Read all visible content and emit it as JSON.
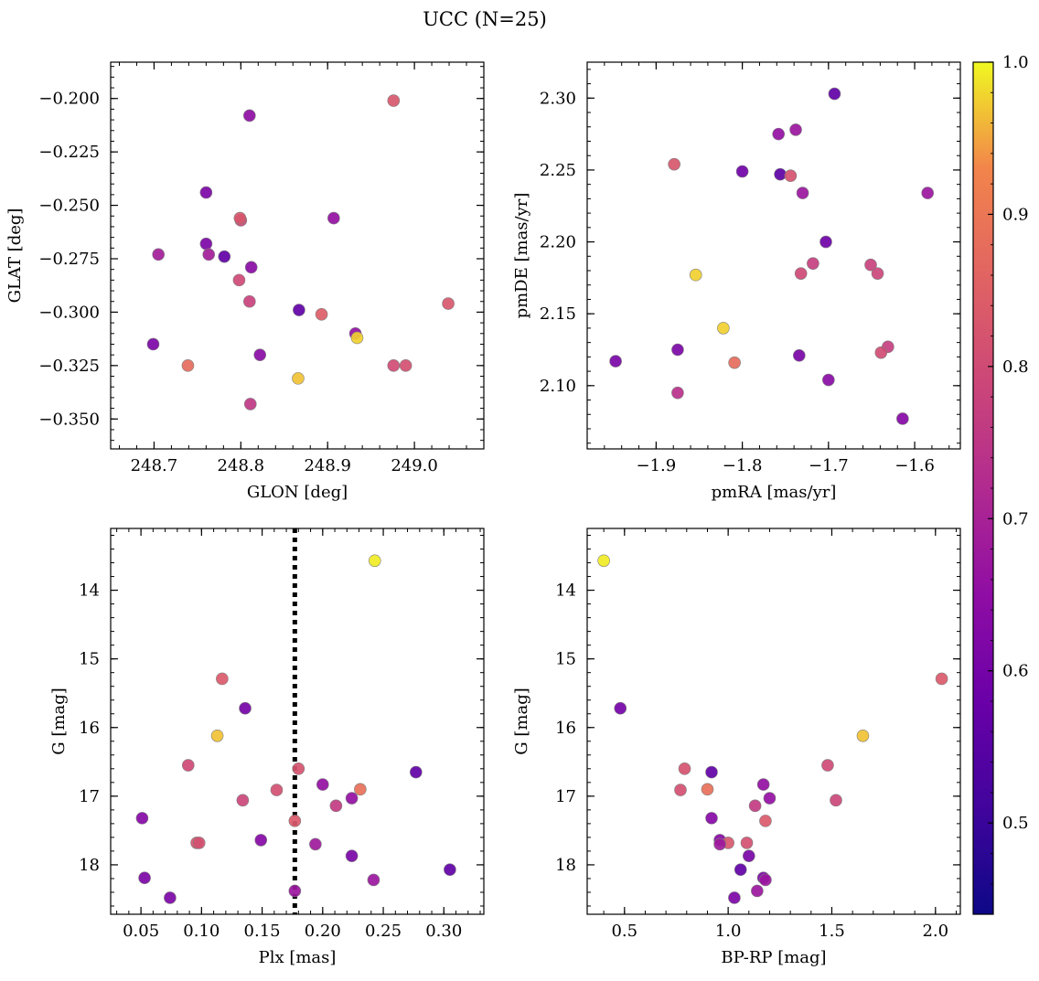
{
  "figure": {
    "title": "UCC (N=25)"
  },
  "colorbar": {
    "min": 0.44,
    "max": 1.0,
    "ticks": [
      "0.5",
      "0.6",
      "0.7",
      "0.8",
      "0.9",
      "1.0"
    ],
    "tick_values": [
      0.5,
      0.6,
      0.7,
      0.8,
      0.9,
      1.0
    ],
    "colormap": "plasma"
  },
  "chart_data": [
    {
      "type": "scatter",
      "id": "glon-glat",
      "xlabel": "GLON [deg]",
      "ylabel": "GLAT [deg]",
      "xlim": [
        248.65,
        249.08
      ],
      "ylim": [
        -0.364,
        -0.183
      ],
      "xticks": [
        248.7,
        248.8,
        248.9,
        249.0
      ],
      "xtick_labels": [
        "248.7",
        "248.8",
        "248.9",
        "249.0"
      ],
      "yticks": [
        -0.2,
        -0.225,
        -0.25,
        -0.275,
        -0.3,
        -0.325,
        -0.35
      ],
      "ytick_labels": [
        "−0.200",
        "−0.225",
        "−0.250",
        "−0.275",
        "−0.300",
        "−0.325",
        "−0.350"
      ],
      "points": [
        {
          "x": 248.976,
          "y": -0.201,
          "c": 0.79
        },
        {
          "x": 248.81,
          "y": -0.208,
          "c": 0.57
        },
        {
          "x": 248.76,
          "y": -0.244,
          "c": 0.53
        },
        {
          "x": 248.8,
          "y": -0.257,
          "c": 0.74
        },
        {
          "x": 248.799,
          "y": -0.256,
          "c": 0.79
        },
        {
          "x": 248.907,
          "y": -0.256,
          "c": 0.58
        },
        {
          "x": 248.76,
          "y": -0.268,
          "c": 0.53
        },
        {
          "x": 248.705,
          "y": -0.273,
          "c": 0.62
        },
        {
          "x": 248.763,
          "y": -0.273,
          "c": 0.62
        },
        {
          "x": 248.781,
          "y": -0.274,
          "c": 0.47
        },
        {
          "x": 248.812,
          "y": -0.279,
          "c": 0.56
        },
        {
          "x": 248.798,
          "y": -0.285,
          "c": 0.75
        },
        {
          "x": 248.81,
          "y": -0.295,
          "c": 0.73
        },
        {
          "x": 249.039,
          "y": -0.296,
          "c": 0.79
        },
        {
          "x": 248.867,
          "y": -0.299,
          "c": 0.47
        },
        {
          "x": 248.893,
          "y": -0.301,
          "c": 0.81
        },
        {
          "x": 248.932,
          "y": -0.31,
          "c": 0.58
        },
        {
          "x": 248.934,
          "y": -0.312,
          "c": 0.97
        },
        {
          "x": 248.699,
          "y": -0.315,
          "c": 0.53
        },
        {
          "x": 248.822,
          "y": -0.32,
          "c": 0.56
        },
        {
          "x": 248.739,
          "y": -0.325,
          "c": 0.85
        },
        {
          "x": 248.976,
          "y": -0.325,
          "c": 0.76
        },
        {
          "x": 248.99,
          "y": -0.325,
          "c": 0.77
        },
        {
          "x": 248.866,
          "y": -0.331,
          "c": 0.96
        },
        {
          "x": 248.811,
          "y": -0.343,
          "c": 0.7
        }
      ]
    },
    {
      "type": "scatter",
      "id": "pmra-pmde",
      "xlabel": "pmRA [mas/yr]",
      "ylabel": "pmDE [mas/yr]",
      "xlim": [
        -1.98,
        -1.547
      ],
      "ylim": [
        2.056,
        2.325
      ],
      "xticks": [
        -1.9,
        -1.8,
        -1.7,
        -1.6
      ],
      "xtick_labels": [
        "−1.9",
        "−1.8",
        "−1.7",
        "−1.6"
      ],
      "yticks": [
        2.1,
        2.15,
        2.2,
        2.25,
        2.3
      ],
      "ytick_labels": [
        "2.10",
        "2.15",
        "2.20",
        "2.25",
        "2.30"
      ],
      "points": [
        {
          "x": -1.693,
          "y": 2.303,
          "c": 0.47
        },
        {
          "x": -1.738,
          "y": 2.278,
          "c": 0.6
        },
        {
          "x": -1.758,
          "y": 2.275,
          "c": 0.58
        },
        {
          "x": -1.879,
          "y": 2.254,
          "c": 0.79
        },
        {
          "x": -1.8,
          "y": 2.249,
          "c": 0.5
        },
        {
          "x": -1.756,
          "y": 2.247,
          "c": 0.46
        },
        {
          "x": -1.744,
          "y": 2.246,
          "c": 0.78
        },
        {
          "x": -1.73,
          "y": 2.234,
          "c": 0.6
        },
        {
          "x": -1.585,
          "y": 2.234,
          "c": 0.6
        },
        {
          "x": -1.703,
          "y": 2.2,
          "c": 0.5
        },
        {
          "x": -1.718,
          "y": 2.185,
          "c": 0.72
        },
        {
          "x": -1.651,
          "y": 2.184,
          "c": 0.73
        },
        {
          "x": -1.732,
          "y": 2.178,
          "c": 0.75
        },
        {
          "x": -1.643,
          "y": 2.178,
          "c": 0.74
        },
        {
          "x": -1.854,
          "y": 2.177,
          "c": 0.97
        },
        {
          "x": -1.822,
          "y": 2.14,
          "c": 0.97
        },
        {
          "x": -1.631,
          "y": 2.127,
          "c": 0.72
        },
        {
          "x": -1.875,
          "y": 2.125,
          "c": 0.53
        },
        {
          "x": -1.639,
          "y": 2.123,
          "c": 0.76
        },
        {
          "x": -1.734,
          "y": 2.121,
          "c": 0.52
        },
        {
          "x": -1.947,
          "y": 2.117,
          "c": 0.52
        },
        {
          "x": -1.809,
          "y": 2.116,
          "c": 0.85
        },
        {
          "x": -1.7,
          "y": 2.104,
          "c": 0.56
        },
        {
          "x": -1.875,
          "y": 2.095,
          "c": 0.68
        },
        {
          "x": -1.614,
          "y": 2.077,
          "c": 0.55
        }
      ]
    },
    {
      "type": "scatter",
      "id": "plx-g",
      "xlabel": "Plx [mas]",
      "ylabel": "G [mag]",
      "xlim": [
        0.025,
        0.333
      ],
      "ylim": [
        13.1,
        18.72
      ],
      "y_inverted": true,
      "vline": {
        "x": 0.177,
        "style": "dotted"
      },
      "xticks": [
        0.05,
        0.1,
        0.15,
        0.2,
        0.25,
        0.3
      ],
      "xtick_labels": [
        "0.05",
        "0.10",
        "0.15",
        "0.20",
        "0.25",
        "0.30"
      ],
      "yticks": [
        14,
        15,
        16,
        17,
        18
      ],
      "ytick_labels": [
        "14",
        "15",
        "16",
        "17",
        "18"
      ],
      "points": [
        {
          "x": 0.243,
          "y": 13.57,
          "c": 0.99
        },
        {
          "x": 0.117,
          "y": 15.29,
          "c": 0.8
        },
        {
          "x": 0.136,
          "y": 15.72,
          "c": 0.51
        },
        {
          "x": 0.113,
          "y": 16.12,
          "c": 0.96
        },
        {
          "x": 0.089,
          "y": 16.55,
          "c": 0.75
        },
        {
          "x": 0.18,
          "y": 16.6,
          "c": 0.78
        },
        {
          "x": 0.277,
          "y": 16.65,
          "c": 0.47
        },
        {
          "x": 0.2,
          "y": 16.83,
          "c": 0.58
        },
        {
          "x": 0.231,
          "y": 16.9,
          "c": 0.86
        },
        {
          "x": 0.162,
          "y": 16.91,
          "c": 0.77
        },
        {
          "x": 0.224,
          "y": 17.03,
          "c": 0.58
        },
        {
          "x": 0.134,
          "y": 17.06,
          "c": 0.74
        },
        {
          "x": 0.211,
          "y": 17.14,
          "c": 0.71
        },
        {
          "x": 0.051,
          "y": 17.32,
          "c": 0.55
        },
        {
          "x": 0.177,
          "y": 17.36,
          "c": 0.8
        },
        {
          "x": 0.149,
          "y": 17.64,
          "c": 0.55
        },
        {
          "x": 0.096,
          "y": 17.68,
          "c": 0.79
        },
        {
          "x": 0.098,
          "y": 17.68,
          "c": 0.77
        },
        {
          "x": 0.194,
          "y": 17.7,
          "c": 0.61
        },
        {
          "x": 0.224,
          "y": 17.87,
          "c": 0.52
        },
        {
          "x": 0.305,
          "y": 18.07,
          "c": 0.47
        },
        {
          "x": 0.053,
          "y": 18.19,
          "c": 0.53
        },
        {
          "x": 0.242,
          "y": 18.22,
          "c": 0.6
        },
        {
          "x": 0.177,
          "y": 18.38,
          "c": 0.6
        },
        {
          "x": 0.074,
          "y": 18.48,
          "c": 0.53
        }
      ]
    },
    {
      "type": "scatter",
      "id": "bprp-g",
      "xlabel": "BP-RP [mag]",
      "ylabel": "G [mag]",
      "xlim": [
        0.32,
        2.12
      ],
      "ylim": [
        13.1,
        18.72
      ],
      "y_inverted": true,
      "xticks": [
        0.5,
        1.0,
        1.5,
        2.0
      ],
      "xtick_labels": [
        "0.5",
        "1.0",
        "1.5",
        "2.0"
      ],
      "yticks": [
        14,
        15,
        16,
        17,
        18
      ],
      "ytick_labels": [
        "14",
        "15",
        "16",
        "17",
        "18"
      ],
      "points": [
        {
          "x": 0.4,
          "y": 13.57,
          "c": 0.99
        },
        {
          "x": 2.03,
          "y": 15.29,
          "c": 0.8
        },
        {
          "x": 0.48,
          "y": 15.72,
          "c": 0.51
        },
        {
          "x": 1.65,
          "y": 16.12,
          "c": 0.96
        },
        {
          "x": 1.48,
          "y": 16.55,
          "c": 0.75
        },
        {
          "x": 0.79,
          "y": 16.6,
          "c": 0.78
        },
        {
          "x": 0.92,
          "y": 16.65,
          "c": 0.47
        },
        {
          "x": 1.17,
          "y": 16.83,
          "c": 0.58
        },
        {
          "x": 0.9,
          "y": 16.9,
          "c": 0.86
        },
        {
          "x": 0.77,
          "y": 16.91,
          "c": 0.77
        },
        {
          "x": 1.2,
          "y": 17.03,
          "c": 0.58
        },
        {
          "x": 1.52,
          "y": 17.06,
          "c": 0.74
        },
        {
          "x": 1.13,
          "y": 17.14,
          "c": 0.71
        },
        {
          "x": 0.92,
          "y": 17.32,
          "c": 0.55
        },
        {
          "x": 1.18,
          "y": 17.36,
          "c": 0.8
        },
        {
          "x": 0.96,
          "y": 17.64,
          "c": 0.55
        },
        {
          "x": 1.0,
          "y": 17.68,
          "c": 0.79
        },
        {
          "x": 1.09,
          "y": 17.68,
          "c": 0.77
        },
        {
          "x": 0.96,
          "y": 17.7,
          "c": 0.61
        },
        {
          "x": 1.1,
          "y": 17.87,
          "c": 0.52
        },
        {
          "x": 1.06,
          "y": 18.07,
          "c": 0.47
        },
        {
          "x": 1.17,
          "y": 18.19,
          "c": 0.53
        },
        {
          "x": 1.18,
          "y": 18.22,
          "c": 0.6
        },
        {
          "x": 1.14,
          "y": 18.38,
          "c": 0.6
        },
        {
          "x": 1.03,
          "y": 18.48,
          "c": 0.53
        }
      ]
    }
  ]
}
